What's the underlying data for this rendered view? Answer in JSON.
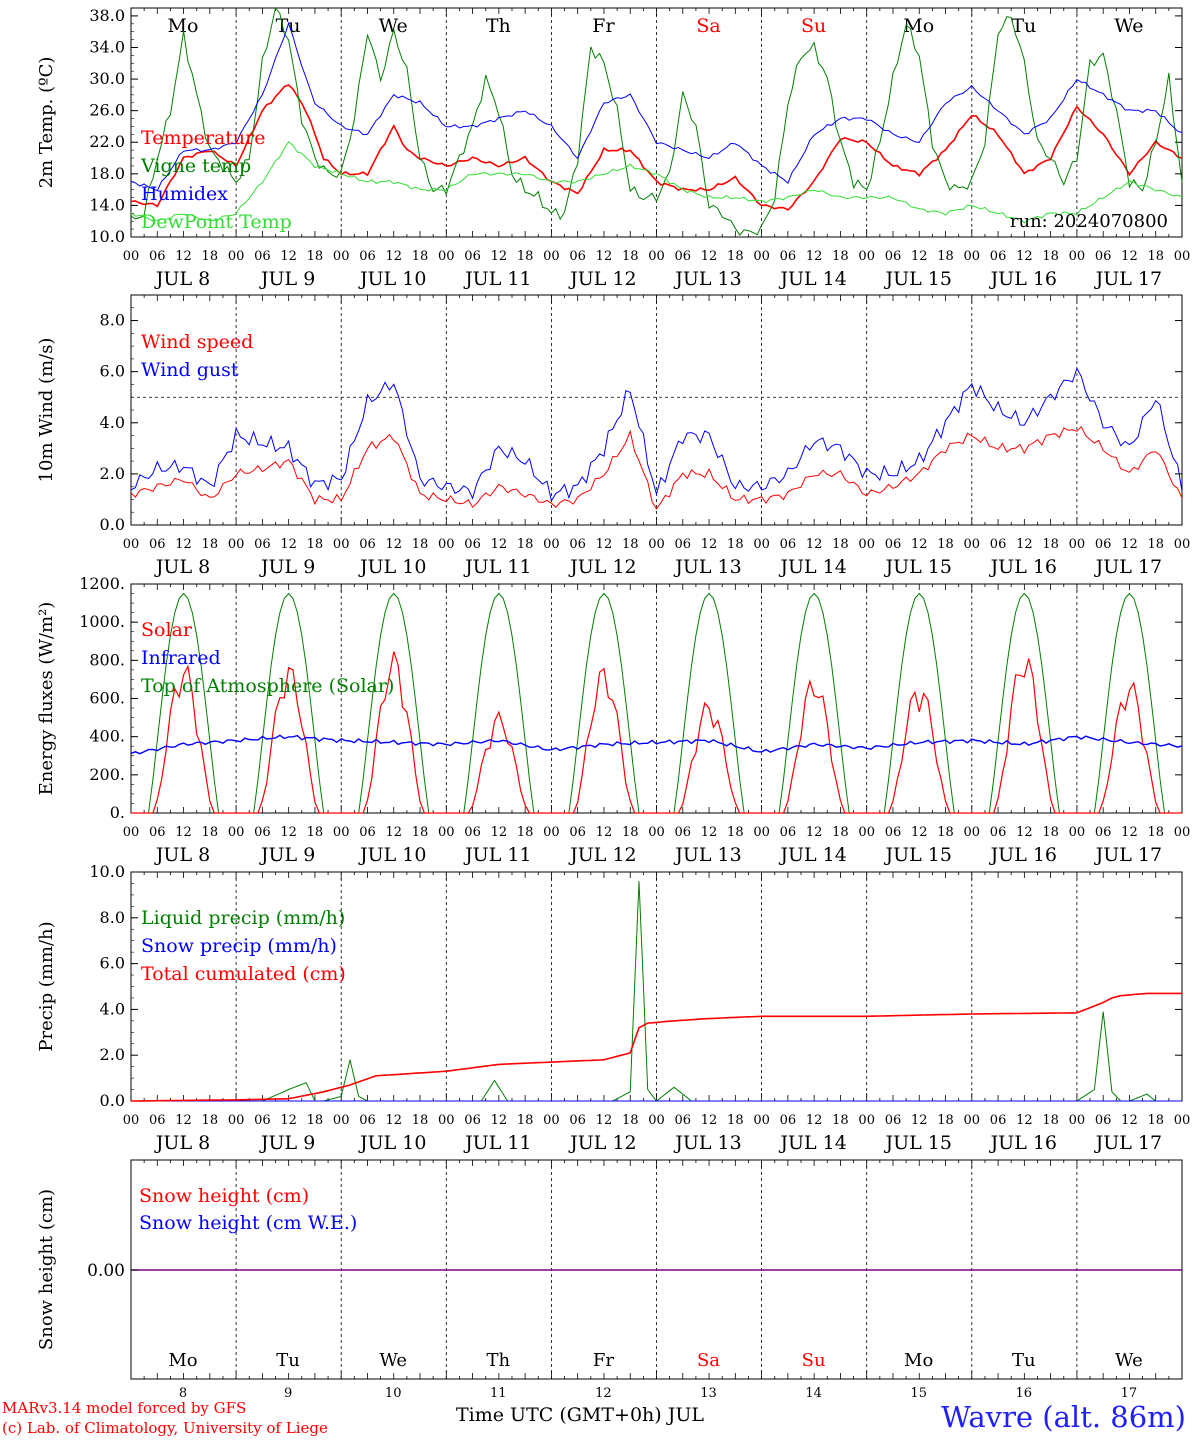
{
  "run_label": "run: 2024070800",
  "time_axis": {
    "hour_labels": [
      "00",
      "06",
      "12",
      "18"
    ],
    "last_hour_label": "00",
    "month": "JUL",
    "day_numbers": [
      "8",
      "9",
      "10",
      "11",
      "12",
      "13",
      "14",
      "15",
      "16",
      "17"
    ],
    "weekdays": [
      "Mo",
      "Tu",
      "We",
      "Th",
      "Fr",
      "Sa",
      "Su",
      "Mo",
      "Tu",
      "We"
    ],
    "weekend_days": [
      5,
      6
    ]
  },
  "colors": {
    "red": "#ff0000",
    "blue": "#0000ff",
    "green": "#008000",
    "lightgreen": "#33dd33",
    "purple": "#800080",
    "black": "#000000"
  },
  "footer": {
    "model_line": "MARv3.14 model forced by GFS",
    "copyright_line": "(c) Lab. of Climatology, University of Liege",
    "time_axis_title": "Time UTC (GMT+0h) JUL",
    "location": "Wavre (alt. 86m)"
  },
  "chart_data": [
    {
      "type": "line",
      "id": "temperature",
      "ylabel": "2m Temp. (ºC)",
      "ylim": [
        10,
        39
      ],
      "yticks": [
        10,
        14,
        18,
        22,
        26,
        30,
        34,
        38
      ],
      "ytick_labels": [
        "10.0",
        "14.0",
        "18.0",
        "22.0",
        "26.0",
        "30.0",
        "34.0",
        "38.0"
      ],
      "x_unit": "hours since JUL 8 00 UTC",
      "series": [
        {
          "name": "Temperature",
          "color": "#ff0000",
          "x": [
            0,
            6,
            12,
            18,
            24,
            30,
            36,
            40,
            44,
            48,
            54,
            60,
            63,
            66,
            72,
            78,
            84,
            90,
            96,
            102,
            108,
            114,
            120,
            126,
            132,
            138,
            144,
            150,
            156,
            162,
            168,
            174,
            180,
            186,
            192,
            198,
            204,
            210,
            216,
            222,
            228,
            234,
            240
          ],
          "y": [
            14.5,
            14,
            20,
            21,
            19,
            26,
            29.5,
            26,
            20,
            18,
            18,
            24,
            21,
            20,
            19,
            20,
            19,
            20,
            17,
            15.5,
            21,
            21,
            17,
            16,
            16,
            17.5,
            14,
            13.5,
            17,
            22.5,
            22,
            19,
            18,
            21,
            25.5,
            23,
            18,
            20,
            26.5,
            23,
            18,
            22,
            20
          ]
        },
        {
          "name": "Vigne temp",
          "color": "#008000",
          "x": [
            0,
            3,
            6,
            9,
            12,
            15,
            18,
            21,
            24,
            27,
            30,
            33,
            36,
            39,
            42,
            45,
            48,
            51,
            54,
            57,
            60,
            63,
            66,
            69,
            72,
            75,
            78,
            81,
            84,
            87,
            90,
            93,
            96,
            99,
            102,
            105,
            108,
            111,
            114,
            117,
            120,
            123,
            126,
            129,
            132,
            135,
            138,
            141,
            144,
            147,
            150,
            153,
            156,
            159,
            162,
            165,
            168,
            171,
            174,
            177,
            180,
            183,
            186,
            189,
            192,
            195,
            198,
            201,
            204,
            207,
            210,
            213,
            216,
            219,
            222,
            225,
            228,
            231,
            234,
            237,
            240
          ],
          "y": [
            12,
            13,
            20,
            26,
            35.5,
            28,
            21,
            19,
            17,
            20,
            32,
            39,
            35,
            25,
            20,
            18,
            18,
            25,
            36,
            30,
            36,
            31,
            20,
            16,
            16,
            20,
            24,
            30,
            26,
            18,
            16,
            15,
            13,
            13,
            20,
            34,
            32,
            26,
            16,
            15,
            15,
            18,
            28,
            24,
            14,
            13,
            11,
            10.5,
            11,
            15,
            27,
            33,
            34,
            30,
            22,
            17,
            16,
            22,
            30,
            37,
            33,
            22,
            17,
            16,
            17,
            22,
            36,
            38,
            32,
            22,
            20,
            17,
            20,
            32,
            33,
            26,
            17,
            16,
            22,
            30,
            17
          ]
        },
        {
          "name": "Humidex",
          "color": "#0000ff",
          "x": [
            0,
            6,
            12,
            18,
            24,
            30,
            36,
            40,
            42,
            48,
            54,
            60,
            66,
            72,
            78,
            84,
            90,
            96,
            102,
            108,
            114,
            120,
            126,
            132,
            138,
            144,
            150,
            156,
            162,
            168,
            174,
            180,
            186,
            192,
            198,
            204,
            210,
            216,
            222,
            228,
            234,
            240
          ],
          "y": [
            17,
            16,
            21,
            21,
            22,
            28,
            37,
            30,
            27,
            24,
            23,
            28,
            27,
            24,
            24,
            25,
            26,
            24,
            20,
            27,
            28,
            22,
            21,
            20,
            22,
            19,
            17,
            23,
            25,
            25,
            23,
            22,
            27,
            29,
            26,
            23,
            25,
            30,
            28,
            26,
            26,
            23
          ]
        },
        {
          "name": "DewPoint Temp",
          "color": "#33dd33",
          "x": [
            0,
            6,
            12,
            18,
            24,
            30,
            36,
            42,
            48,
            54,
            60,
            66,
            72,
            78,
            84,
            90,
            96,
            102,
            108,
            114,
            120,
            126,
            132,
            138,
            144,
            150,
            156,
            162,
            168,
            174,
            180,
            186,
            192,
            198,
            204,
            210,
            216,
            222,
            228,
            234,
            240
          ],
          "y": [
            13,
            12,
            13,
            12,
            13,
            17,
            22,
            19,
            18,
            17,
            17,
            16,
            16,
            18,
            18,
            18,
            17,
            17,
            18,
            19,
            18,
            16,
            15,
            15,
            14.5,
            15,
            16,
            15,
            15,
            15,
            13.5,
            13,
            14,
            13,
            12,
            13,
            13,
            15,
            17,
            16,
            15
          ]
        }
      ],
      "legend": [
        "Temperature",
        "Vigne temp",
        "Humidex",
        "DewPoint Temp"
      ]
    },
    {
      "type": "line",
      "id": "wind",
      "ylabel": "10m Wind (m/s)",
      "ylim": [
        0,
        9
      ],
      "yticks": [
        0,
        2,
        4,
        6,
        8
      ],
      "ytick_labels": [
        "0.0",
        "2.0",
        "4.0",
        "6.0",
        "8.0"
      ],
      "reference_line": 5,
      "series": [
        {
          "name": "Wind speed",
          "color": "#ff0000",
          "x": [
            0,
            6,
            12,
            18,
            24,
            30,
            36,
            42,
            48,
            54,
            60,
            66,
            72,
            78,
            84,
            90,
            96,
            102,
            108,
            114,
            120,
            126,
            132,
            138,
            144,
            150,
            156,
            162,
            168,
            174,
            180,
            186,
            192,
            198,
            204,
            210,
            216,
            222,
            228,
            234,
            240
          ],
          "y": [
            1.2,
            1.5,
            1.8,
            1.0,
            2.0,
            2.2,
            2.5,
            1.0,
            1.0,
            3.0,
            3.5,
            1.2,
            1.0,
            0.8,
            1.5,
            1.2,
            0.8,
            1.0,
            2.0,
            3.5,
            0.6,
            2.0,
            2.0,
            1.0,
            1.0,
            1.2,
            2.0,
            2.0,
            1.2,
            1.5,
            2.0,
            3.0,
            3.5,
            3.0,
            3.0,
            3.5,
            3.8,
            3.0,
            2.0,
            3.0,
            1.0
          ]
        },
        {
          "name": "Wind gust",
          "color": "#0000ff",
          "x": [
            0,
            6,
            12,
            18,
            24,
            30,
            36,
            42,
            48,
            54,
            60,
            66,
            72,
            78,
            84,
            90,
            96,
            102,
            108,
            114,
            120,
            126,
            132,
            138,
            144,
            150,
            156,
            162,
            168,
            174,
            180,
            186,
            192,
            198,
            204,
            210,
            216,
            222,
            228,
            234,
            240
          ],
          "y": [
            1.5,
            2.2,
            2.3,
            1.5,
            3.5,
            3.2,
            3.0,
            1.6,
            1.8,
            4.8,
            5.6,
            1.8,
            1.5,
            1.3,
            3.0,
            2.5,
            1.2,
            1.5,
            3.0,
            5.3,
            1.2,
            3.5,
            3.5,
            1.5,
            1.5,
            2.0,
            3.3,
            3.0,
            2.0,
            2.0,
            2.5,
            4.0,
            5.5,
            4.5,
            4.0,
            5.0,
            6.0,
            4.0,
            3.0,
            5.0,
            1.5
          ]
        }
      ],
      "legend": [
        "Wind speed",
        "Wind gust"
      ]
    },
    {
      "type": "line",
      "id": "energy",
      "ylabel": "Energy fluxes (W/m²)",
      "ylim": [
        0,
        1200
      ],
      "yticks": [
        0,
        200,
        400,
        600,
        800,
        1000,
        1200
      ],
      "ytick_labels": [
        "0.",
        "200.",
        "400.",
        "600.",
        "800.",
        "1000.",
        "1200."
      ],
      "series": [
        {
          "name": "Solar",
          "color": "#ff0000",
          "daily_peaks": [
            800,
            790,
            850,
            530,
            780,
            600,
            730,
            700,
            860,
            710
          ]
        },
        {
          "name": "Infrared",
          "color": "#0000ff",
          "x": [
            0,
            12,
            24,
            36,
            48,
            60,
            72,
            84,
            96,
            108,
            120,
            132,
            144,
            156,
            168,
            180,
            192,
            204,
            216,
            228,
            240
          ],
          "y": [
            310,
            360,
            380,
            400,
            380,
            370,
            360,
            380,
            330,
            360,
            370,
            380,
            320,
            360,
            340,
            370,
            380,
            360,
            400,
            370,
            350
          ]
        },
        {
          "name": "Top of Atmosphere (Solar)",
          "color": "#008000",
          "daily_peak": 1150
        }
      ],
      "legend": [
        "Solar",
        "Infrared",
        "Top of Atmosphere (Solar)"
      ]
    },
    {
      "type": "line",
      "id": "precip",
      "ylabel": "Precip (mm/h)",
      "ylim": [
        0,
        10
      ],
      "yticks": [
        0,
        2,
        4,
        6,
        8,
        10
      ],
      "ytick_labels": [
        "0.0",
        "2.0",
        "4.0",
        "6.0",
        "8.0",
        "10.0"
      ],
      "series": [
        {
          "name": "Liquid precip (mm/h)",
          "color": "#008000",
          "x": [
            0,
            30,
            36,
            40,
            42,
            44,
            48,
            50,
            52,
            54,
            56,
            60,
            80,
            83,
            86,
            110,
            114,
            116,
            118,
            120,
            124,
            128,
            132,
            200,
            210,
            216,
            220,
            222,
            224,
            226,
            228,
            232,
            234,
            236,
            240
          ],
          "y": [
            0,
            0,
            0.5,
            0.8,
            0,
            0,
            0.2,
            1.8,
            0.2,
            0,
            0,
            0,
            0,
            0.9,
            0,
            0,
            0.4,
            9.6,
            0.5,
            0,
            0.6,
            0,
            0,
            0,
            0,
            0,
            0.5,
            3.9,
            0.4,
            0,
            0,
            0.3,
            0,
            0,
            0
          ]
        },
        {
          "name": "Snow precip (mm/h)",
          "color": "#0000ff",
          "x": [
            0,
            240
          ],
          "y": [
            0,
            0
          ]
        },
        {
          "name": "Total cumulated (cm)",
          "color": "#ff0000",
          "x": [
            0,
            24,
            36,
            44,
            50,
            56,
            72,
            84,
            96,
            108,
            114,
            116,
            118,
            124,
            132,
            144,
            168,
            192,
            216,
            222,
            224,
            226,
            232,
            240
          ],
          "y": [
            0,
            0.05,
            0.1,
            0.4,
            0.7,
            1.1,
            1.3,
            1.6,
            1.7,
            1.8,
            2.1,
            3.2,
            3.4,
            3.5,
            3.6,
            3.7,
            3.7,
            3.8,
            3.85,
            4.3,
            4.5,
            4.6,
            4.7,
            4.7
          ]
        }
      ],
      "legend": [
        "Liquid precip (mm/h)",
        "Snow precip (mm/h)",
        "Total cumulated (cm)"
      ]
    },
    {
      "type": "line",
      "id": "snow",
      "ylabel": "Snow height (cm)",
      "ytick_labels": [
        "0.00"
      ],
      "series": [
        {
          "name": "Snow height (cm)",
          "color": "#ff0000",
          "x": [
            0,
            240
          ],
          "y": [
            0,
            0
          ]
        },
        {
          "name": "Snow height (cm W.E.)",
          "color": "#0000ff",
          "x": [
            0,
            240
          ],
          "y": [
            0,
            0
          ]
        }
      ],
      "legend": [
        "Snow height (cm)",
        "Snow height (cm W.E.)"
      ]
    }
  ]
}
